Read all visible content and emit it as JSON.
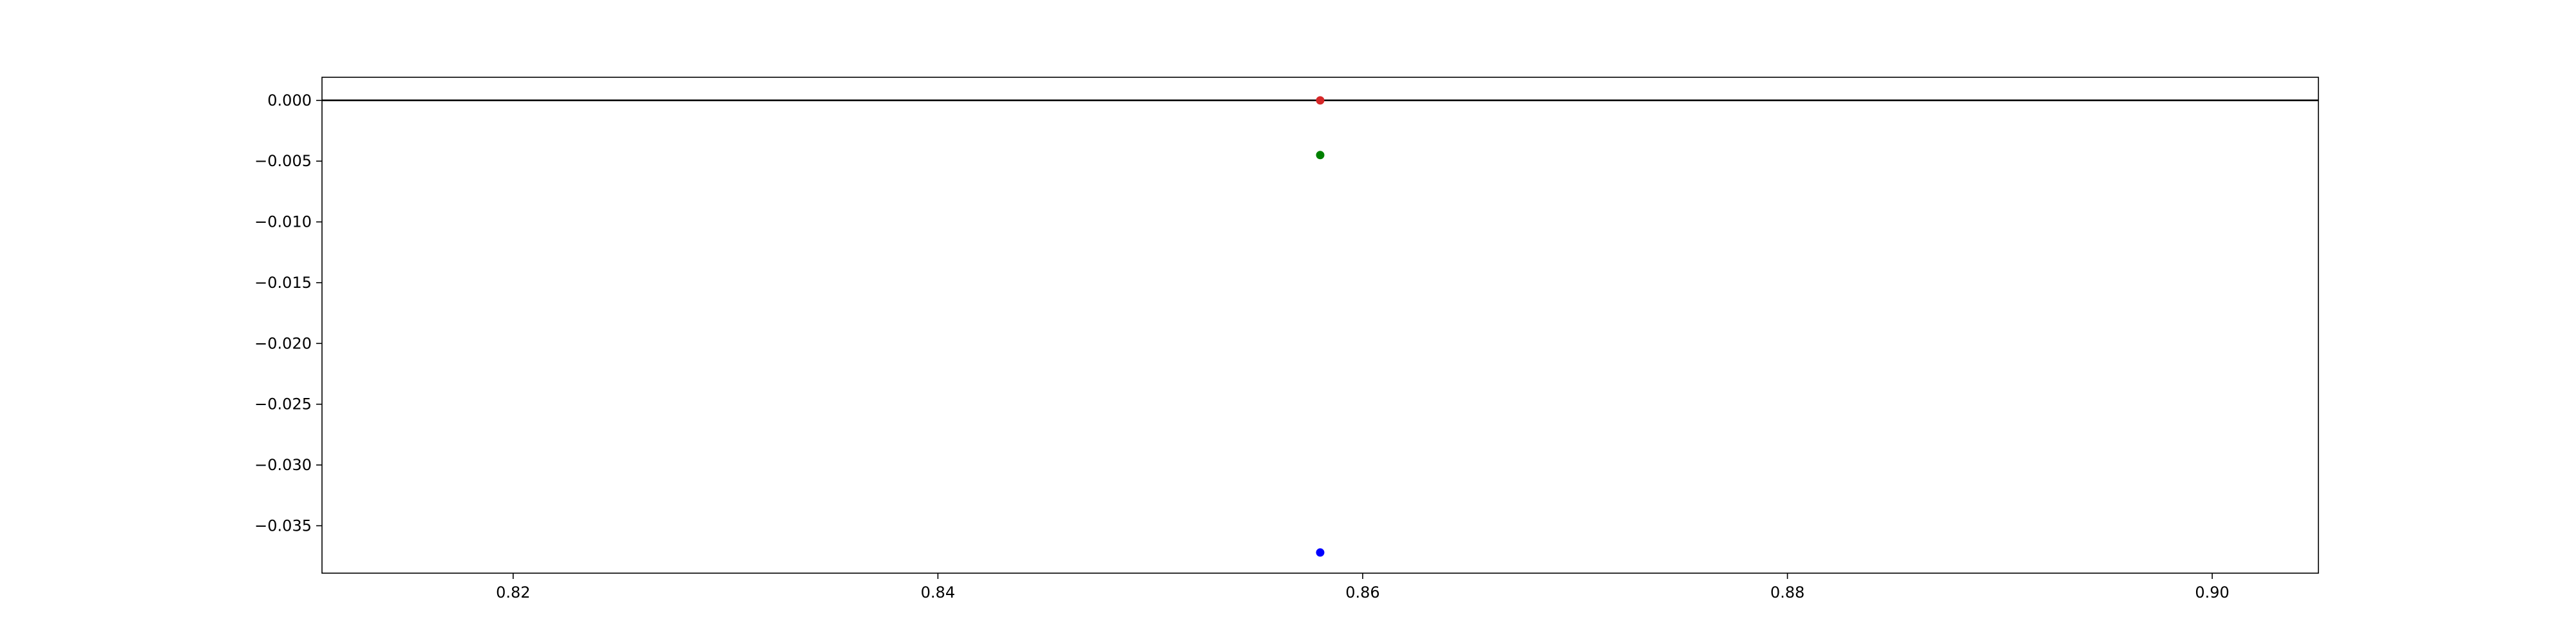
{
  "chart_data": {
    "type": "scatter",
    "title": "",
    "xlabel": "",
    "ylabel": "",
    "xlim": [
      0.811,
      0.905
    ],
    "ylim": [
      -0.0389,
      0.0019
    ],
    "grid": false,
    "x_ticks": [
      "0.82",
      "0.84",
      "0.86",
      "0.88",
      "0.90"
    ],
    "x_tick_values": [
      0.82,
      0.84,
      0.86,
      0.88,
      0.9
    ],
    "y_ticks": [
      "0.000",
      "−0.005",
      "−0.010",
      "−0.015",
      "−0.020",
      "−0.025",
      "−0.030",
      "−0.035"
    ],
    "y_tick_values": [
      0.0,
      -0.005,
      -0.01,
      -0.015,
      -0.02,
      -0.025,
      -0.03,
      -0.035
    ],
    "hline": {
      "y": 0.0,
      "color": "#000000"
    },
    "points": [
      {
        "x": 0.858,
        "y": 0.0,
        "color": "#d62728"
      },
      {
        "x": 0.858,
        "y": -0.0045,
        "color": "#008000"
      },
      {
        "x": 0.858,
        "y": -0.0372,
        "color": "#0000ff"
      }
    ]
  }
}
